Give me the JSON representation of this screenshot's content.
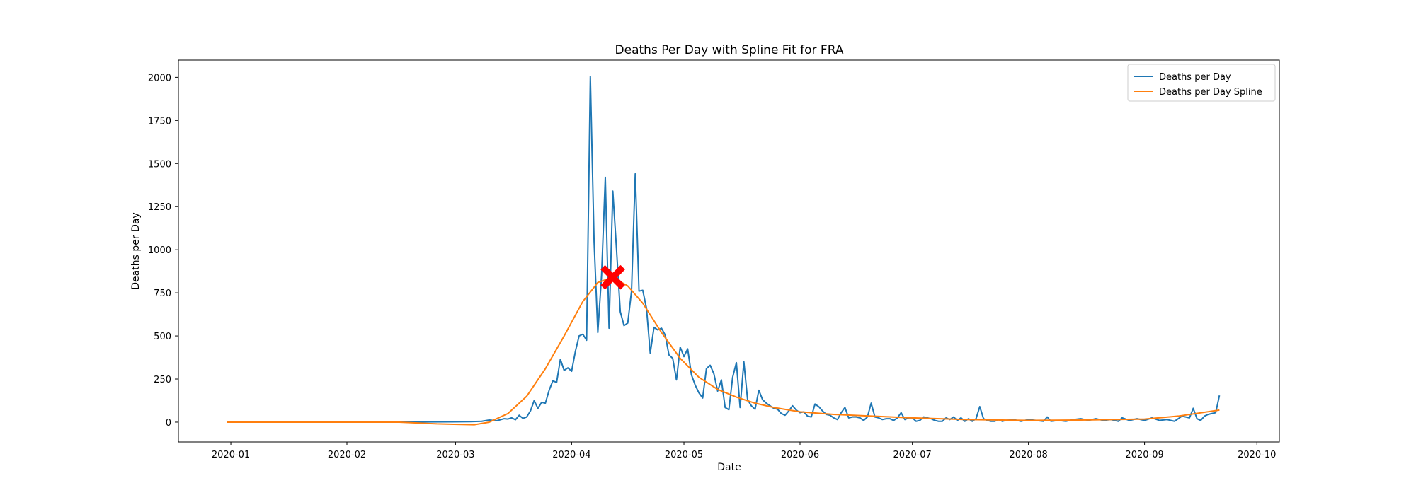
{
  "chart_data": {
    "type": "line",
    "title": "Deaths Per Day with Spline Fit for FRA",
    "xlabel": "Date",
    "ylabel": "Deaths per Day",
    "x_range": [
      "2019-12-18",
      "2020-10-07"
    ],
    "ylim": [
      -115,
      2100
    ],
    "x_ticks": [
      "2020-01-01",
      "2020-02-01",
      "2020-03-01",
      "2020-04-01",
      "2020-05-01",
      "2020-06-01",
      "2020-07-01",
      "2020-08-01",
      "2020-09-01",
      "2020-10-01"
    ],
    "x_tick_labels": [
      "2020-01",
      "2020-02",
      "2020-03",
      "2020-04",
      "2020-05",
      "2020-06",
      "2020-07",
      "2020-08",
      "2020-09",
      "2020-10"
    ],
    "y_ticks": [
      0,
      250,
      500,
      750,
      1000,
      1250,
      1500,
      1750,
      2000
    ],
    "y_tick_labels": [
      "0",
      "250",
      "500",
      "750",
      "1000",
      "1250",
      "1500",
      "1750",
      "2000"
    ],
    "legend_position": "top-right",
    "grid": false,
    "series": [
      {
        "name": "Deaths per Day",
        "color": "#1f77b4",
        "points": [
          [
            "2019-12-31",
            0
          ],
          [
            "2020-01-15",
            0
          ],
          [
            "2020-02-01",
            0
          ],
          [
            "2020-02-15",
            1
          ],
          [
            "2020-02-29",
            2
          ],
          [
            "2020-03-05",
            3
          ],
          [
            "2020-03-08",
            5
          ],
          [
            "2020-03-10",
            12
          ],
          [
            "2020-03-12",
            8
          ],
          [
            "2020-03-14",
            20
          ],
          [
            "2020-03-15",
            18
          ],
          [
            "2020-03-16",
            25
          ],
          [
            "2020-03-17",
            14
          ],
          [
            "2020-03-18",
            40
          ],
          [
            "2020-03-19",
            22
          ],
          [
            "2020-03-20",
            30
          ],
          [
            "2020-03-21",
            65
          ],
          [
            "2020-03-22",
            125
          ],
          [
            "2020-03-23",
            80
          ],
          [
            "2020-03-24",
            115
          ],
          [
            "2020-03-25",
            110
          ],
          [
            "2020-03-26",
            185
          ],
          [
            "2020-03-27",
            240
          ],
          [
            "2020-03-28",
            230
          ],
          [
            "2020-03-29",
            365
          ],
          [
            "2020-03-30",
            300
          ],
          [
            "2020-03-31",
            315
          ],
          [
            "2020-04-01",
            295
          ],
          [
            "2020-04-02",
            410
          ],
          [
            "2020-04-03",
            500
          ],
          [
            "2020-04-04",
            510
          ],
          [
            "2020-04-05",
            475
          ],
          [
            "2020-04-06",
            2005
          ],
          [
            "2020-04-07",
            1050
          ],
          [
            "2020-04-08",
            520
          ],
          [
            "2020-04-09",
            850
          ],
          [
            "2020-04-10",
            1420
          ],
          [
            "2020-04-11",
            545
          ],
          [
            "2020-04-12",
            1340
          ],
          [
            "2020-04-13",
            1000
          ],
          [
            "2020-04-14",
            640
          ],
          [
            "2020-04-15",
            560
          ],
          [
            "2020-04-16",
            575
          ],
          [
            "2020-04-17",
            760
          ],
          [
            "2020-04-18",
            1440
          ],
          [
            "2020-04-19",
            760
          ],
          [
            "2020-04-20",
            765
          ],
          [
            "2020-04-21",
            660
          ],
          [
            "2020-04-22",
            400
          ],
          [
            "2020-04-23",
            550
          ],
          [
            "2020-04-24",
            535
          ],
          [
            "2020-04-25",
            545
          ],
          [
            "2020-04-26",
            505
          ],
          [
            "2020-04-27",
            390
          ],
          [
            "2020-04-28",
            370
          ],
          [
            "2020-04-29",
            245
          ],
          [
            "2020-04-30",
            435
          ],
          [
            "2020-05-01",
            380
          ],
          [
            "2020-05-02",
            425
          ],
          [
            "2020-05-03",
            275
          ],
          [
            "2020-05-04",
            215
          ],
          [
            "2020-05-05",
            170
          ],
          [
            "2020-05-06",
            140
          ],
          [
            "2020-05-07",
            310
          ],
          [
            "2020-05-08",
            330
          ],
          [
            "2020-05-09",
            280
          ],
          [
            "2020-05-10",
            180
          ],
          [
            "2020-05-11",
            245
          ],
          [
            "2020-05-12",
            85
          ],
          [
            "2020-05-13",
            72
          ],
          [
            "2020-05-14",
            260
          ],
          [
            "2020-05-15",
            345
          ],
          [
            "2020-05-16",
            85
          ],
          [
            "2020-05-17",
            350
          ],
          [
            "2020-05-18",
            130
          ],
          [
            "2020-05-19",
            95
          ],
          [
            "2020-05-20",
            75
          ],
          [
            "2020-05-21",
            185
          ],
          [
            "2020-05-22",
            130
          ],
          [
            "2020-05-23",
            110
          ],
          [
            "2020-05-24",
            95
          ],
          [
            "2020-05-25",
            80
          ],
          [
            "2020-05-26",
            75
          ],
          [
            "2020-05-27",
            50
          ],
          [
            "2020-05-28",
            40
          ],
          [
            "2020-05-29",
            65
          ],
          [
            "2020-05-30",
            95
          ],
          [
            "2020-05-31",
            70
          ],
          [
            "2020-06-01",
            55
          ],
          [
            "2020-06-02",
            60
          ],
          [
            "2020-06-03",
            35
          ],
          [
            "2020-06-04",
            30
          ],
          [
            "2020-06-05",
            105
          ],
          [
            "2020-06-06",
            90
          ],
          [
            "2020-06-07",
            65
          ],
          [
            "2020-06-08",
            45
          ],
          [
            "2020-06-09",
            40
          ],
          [
            "2020-06-10",
            25
          ],
          [
            "2020-06-11",
            15
          ],
          [
            "2020-06-12",
            55
          ],
          [
            "2020-06-13",
            85
          ],
          [
            "2020-06-14",
            25
          ],
          [
            "2020-06-15",
            30
          ],
          [
            "2020-06-16",
            30
          ],
          [
            "2020-06-17",
            25
          ],
          [
            "2020-06-18",
            10
          ],
          [
            "2020-06-19",
            30
          ],
          [
            "2020-06-20",
            110
          ],
          [
            "2020-06-21",
            30
          ],
          [
            "2020-06-22",
            25
          ],
          [
            "2020-06-23",
            15
          ],
          [
            "2020-06-24",
            20
          ],
          [
            "2020-06-25",
            20
          ],
          [
            "2020-06-26",
            10
          ],
          [
            "2020-06-27",
            25
          ],
          [
            "2020-06-28",
            55
          ],
          [
            "2020-06-29",
            15
          ],
          [
            "2020-06-30",
            25
          ],
          [
            "2020-07-01",
            25
          ],
          [
            "2020-07-02",
            5
          ],
          [
            "2020-07-03",
            10
          ],
          [
            "2020-07-04",
            30
          ],
          [
            "2020-07-05",
            25
          ],
          [
            "2020-07-06",
            20
          ],
          [
            "2020-07-07",
            10
          ],
          [
            "2020-07-08",
            5
          ],
          [
            "2020-07-09",
            5
          ],
          [
            "2020-07-10",
            25
          ],
          [
            "2020-07-11",
            15
          ],
          [
            "2020-07-12",
            30
          ],
          [
            "2020-07-13",
            10
          ],
          [
            "2020-07-14",
            25
          ],
          [
            "2020-07-15",
            5
          ],
          [
            "2020-07-16",
            20
          ],
          [
            "2020-07-17",
            5
          ],
          [
            "2020-07-18",
            20
          ],
          [
            "2020-07-19",
            90
          ],
          [
            "2020-07-20",
            20
          ],
          [
            "2020-07-21",
            10
          ],
          [
            "2020-07-22",
            5
          ],
          [
            "2020-07-23",
            5
          ],
          [
            "2020-07-24",
            15
          ],
          [
            "2020-07-25",
            5
          ],
          [
            "2020-07-26",
            10
          ],
          [
            "2020-07-28",
            15
          ],
          [
            "2020-07-30",
            5
          ],
          [
            "2020-08-01",
            15
          ],
          [
            "2020-08-03",
            10
          ],
          [
            "2020-08-05",
            5
          ],
          [
            "2020-08-06",
            30
          ],
          [
            "2020-08-07",
            5
          ],
          [
            "2020-08-09",
            10
          ],
          [
            "2020-08-11",
            5
          ],
          [
            "2020-08-13",
            15
          ],
          [
            "2020-08-15",
            20
          ],
          [
            "2020-08-17",
            10
          ],
          [
            "2020-08-19",
            20
          ],
          [
            "2020-08-21",
            10
          ],
          [
            "2020-08-23",
            15
          ],
          [
            "2020-08-25",
            5
          ],
          [
            "2020-08-26",
            25
          ],
          [
            "2020-08-28",
            10
          ],
          [
            "2020-08-30",
            20
          ],
          [
            "2020-09-01",
            10
          ],
          [
            "2020-09-03",
            25
          ],
          [
            "2020-09-05",
            10
          ],
          [
            "2020-09-07",
            15
          ],
          [
            "2020-09-09",
            5
          ],
          [
            "2020-09-11",
            35
          ],
          [
            "2020-09-13",
            25
          ],
          [
            "2020-09-14",
            80
          ],
          [
            "2020-09-15",
            20
          ],
          [
            "2020-09-16",
            10
          ],
          [
            "2020-09-17",
            35
          ],
          [
            "2020-09-18",
            45
          ],
          [
            "2020-09-19",
            50
          ],
          [
            "2020-09-20",
            55
          ],
          [
            "2020-09-21",
            155
          ]
        ]
      },
      {
        "name": "Deaths per Day Spline",
        "color": "#ff7f0e",
        "points": [
          [
            "2019-12-31",
            0
          ],
          [
            "2020-02-15",
            0
          ],
          [
            "2020-02-25",
            -10
          ],
          [
            "2020-03-06",
            -15
          ],
          [
            "2020-03-10",
            0
          ],
          [
            "2020-03-15",
            50
          ],
          [
            "2020-03-20",
            150
          ],
          [
            "2020-03-25",
            310
          ],
          [
            "2020-03-30",
            500
          ],
          [
            "2020-04-04",
            700
          ],
          [
            "2020-04-08",
            810
          ],
          [
            "2020-04-12",
            840
          ],
          [
            "2020-04-16",
            790
          ],
          [
            "2020-04-20",
            690
          ],
          [
            "2020-04-25",
            520
          ],
          [
            "2020-04-30",
            370
          ],
          [
            "2020-05-05",
            260
          ],
          [
            "2020-05-10",
            190
          ],
          [
            "2020-05-15",
            145
          ],
          [
            "2020-05-20",
            110
          ],
          [
            "2020-05-25",
            85
          ],
          [
            "2020-06-01",
            60
          ],
          [
            "2020-06-10",
            45
          ],
          [
            "2020-06-20",
            35
          ],
          [
            "2020-07-01",
            25
          ],
          [
            "2020-07-15",
            15
          ],
          [
            "2020-08-01",
            10
          ],
          [
            "2020-08-15",
            12
          ],
          [
            "2020-09-01",
            18
          ],
          [
            "2020-09-10",
            35
          ],
          [
            "2020-09-21",
            70
          ]
        ]
      }
    ],
    "marker": {
      "x": "2020-04-12",
      "y": 840,
      "shape": "X",
      "color": "#ff0000"
    }
  }
}
